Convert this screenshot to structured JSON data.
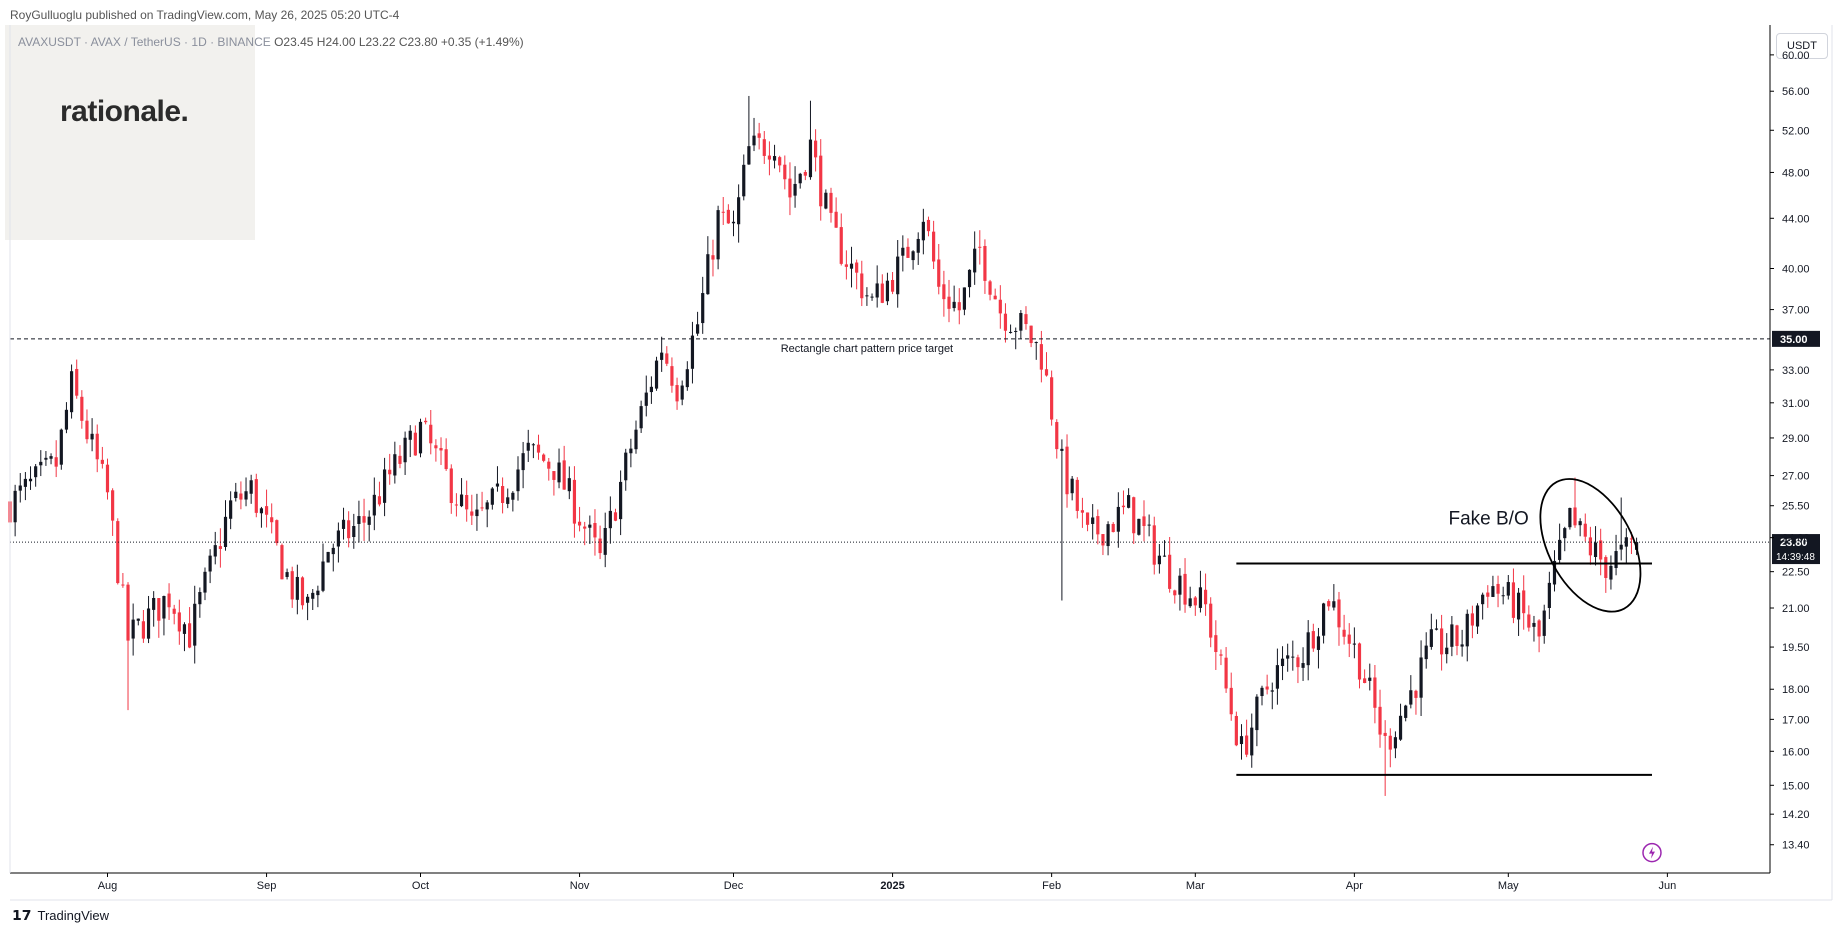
{
  "header": {
    "publish_line": "RoyGulluoglu published on TradingView.com, May 26, 2025 05:20 UTC-4",
    "symbol": "AVAXUSDT · AVAX / TetherUS · 1D · BINANCE",
    "ohlc": "O23.45 H24.00 L23.22 C23.80 +0.35 (+1.49%)"
  },
  "logo": {
    "text": "rationale."
  },
  "price_axis": {
    "currency_label": "USDT"
  },
  "footer": {
    "brand": "TradingView"
  },
  "colors": {
    "up": "#131722",
    "down": "#f23645",
    "line": "#000000"
  },
  "chart_data": {
    "type": "candlestick",
    "series_name": "AVAXUSDT",
    "scale": "log",
    "ylim": [
      12.7,
      63.5
    ],
    "y_ticks": [
      "60.00",
      "56.00",
      "52.00",
      "48.00",
      "44.00",
      "40.00",
      "37.00",
      "35.00",
      "33.00",
      "31.00",
      "29.00",
      "27.00",
      "25.50",
      "24.00",
      "22.50",
      "21.00",
      "19.50",
      "18.00",
      "17.00",
      "16.00",
      "15.00",
      "14.20",
      "13.40"
    ],
    "y_tick_values": [
      60,
      56,
      52,
      48,
      44,
      40,
      37,
      35,
      33,
      31,
      29,
      27,
      25.5,
      24,
      22.5,
      21,
      19.5,
      18,
      17,
      16,
      15,
      14.2,
      13.4
    ],
    "x_ticks": [
      {
        "label": "Aug",
        "date": "2024-08-01"
      },
      {
        "label": "Sep",
        "date": "2024-09-01"
      },
      {
        "label": "Oct",
        "date": "2024-10-01"
      },
      {
        "label": "Nov",
        "date": "2024-11-01"
      },
      {
        "label": "Dec",
        "date": "2024-12-01"
      },
      {
        "label": "2025",
        "date": "2025-01-01"
      },
      {
        "label": "Feb",
        "date": "2025-02-01"
      },
      {
        "label": "Mar",
        "date": "2025-03-01"
      },
      {
        "label": "Apr",
        "date": "2025-04-01"
      },
      {
        "label": "May",
        "date": "2025-05-01"
      },
      {
        "label": "Jun",
        "date": "2025-06-01"
      }
    ],
    "x_range": [
      "2024-07-13",
      "2025-06-21"
    ],
    "last_price": {
      "value": 23.8,
      "label": "23.80",
      "countdown": "14:39:48"
    },
    "target_level": {
      "value": 35.0,
      "label": "35.00"
    },
    "annotations": {
      "target_text": "Rectangle chart pattern price target",
      "fake_bo_text": "Fake B/O"
    },
    "lines": [
      {
        "name": "resistance",
        "start": "2025-03-09",
        "end": "2025-05-29",
        "value": 22.85
      },
      {
        "name": "support",
        "start": "2025-03-09",
        "end": "2025-05-29",
        "value": 15.3
      }
    ],
    "closes_path": [
      [
        "2024-07-13",
        25.6
      ],
      [
        "2024-07-22",
        27.6
      ],
      [
        "2024-07-25",
        32.0
      ],
      [
        "2024-08-01",
        26.0
      ],
      [
        "2024-08-05",
        19.8
      ],
      [
        "2024-08-13",
        21.5
      ],
      [
        "2024-08-17",
        20.0
      ],
      [
        "2024-08-25",
        25.5
      ],
      [
        "2024-08-29",
        26.3
      ],
      [
        "2024-09-06",
        21.8
      ],
      [
        "2024-09-09",
        21.0
      ],
      [
        "2024-09-13",
        23.5
      ],
      [
        "2024-09-20",
        24.8
      ],
      [
        "2024-09-25",
        27.0
      ],
      [
        "2024-10-01",
        29.5
      ],
      [
        "2024-10-08",
        26.0
      ],
      [
        "2024-10-11",
        24.5
      ],
      [
        "2024-10-16",
        25.8
      ],
      [
        "2024-10-22",
        28.2
      ],
      [
        "2024-10-27",
        27.5
      ],
      [
        "2024-11-01",
        25.0
      ],
      [
        "2024-11-05",
        23.0
      ],
      [
        "2024-11-11",
        28.5
      ],
      [
        "2024-11-17",
        34.5
      ],
      [
        "2024-11-20",
        32.0
      ],
      [
        "2024-11-24",
        36.0
      ],
      [
        "2024-11-28",
        44.0
      ],
      [
        "2024-12-01",
        43.0
      ],
      [
        "2024-12-04",
        50.0
      ],
      [
        "2024-12-09",
        51.0
      ],
      [
        "2024-12-12",
        46.0
      ],
      [
        "2024-12-16",
        50.5
      ],
      [
        "2024-12-20",
        43.0
      ],
      [
        "2024-12-24",
        40.0
      ],
      [
        "2024-12-28",
        37.5
      ],
      [
        "2025-01-03",
        40.5
      ],
      [
        "2025-01-07",
        44.5
      ],
      [
        "2025-01-10",
        38.5
      ],
      [
        "2025-01-14",
        37.0
      ],
      [
        "2025-01-18",
        41.5
      ],
      [
        "2025-01-22",
        37.0
      ],
      [
        "2025-01-27",
        35.5
      ],
      [
        "2025-01-30",
        34.0
      ],
      [
        "2025-02-03",
        27.5
      ],
      [
        "2025-02-08",
        24.0
      ],
      [
        "2025-02-16",
        25.3
      ],
      [
        "2025-02-24",
        22.5
      ],
      [
        "2025-03-03",
        21.0
      ],
      [
        "2025-03-10",
        16.0
      ],
      [
        "2025-03-16",
        18.5
      ],
      [
        "2025-03-22",
        19.3
      ],
      [
        "2025-03-27",
        21.5
      ],
      [
        "2025-04-02",
        19.0
      ],
      [
        "2025-04-07",
        16.2
      ],
      [
        "2025-04-11",
        17.5
      ],
      [
        "2025-04-16",
        19.5
      ],
      [
        "2025-04-22",
        19.8
      ],
      [
        "2025-04-27",
        22.0
      ],
      [
        "2025-05-02",
        21.2
      ],
      [
        "2025-05-07",
        19.8
      ],
      [
        "2025-05-10",
        22.5
      ],
      [
        "2025-05-13",
        24.8
      ],
      [
        "2025-05-17",
        23.5
      ],
      [
        "2025-05-20",
        22.8
      ],
      [
        "2025-05-23",
        23.2
      ],
      [
        "2025-05-26",
        23.8
      ]
    ]
  }
}
